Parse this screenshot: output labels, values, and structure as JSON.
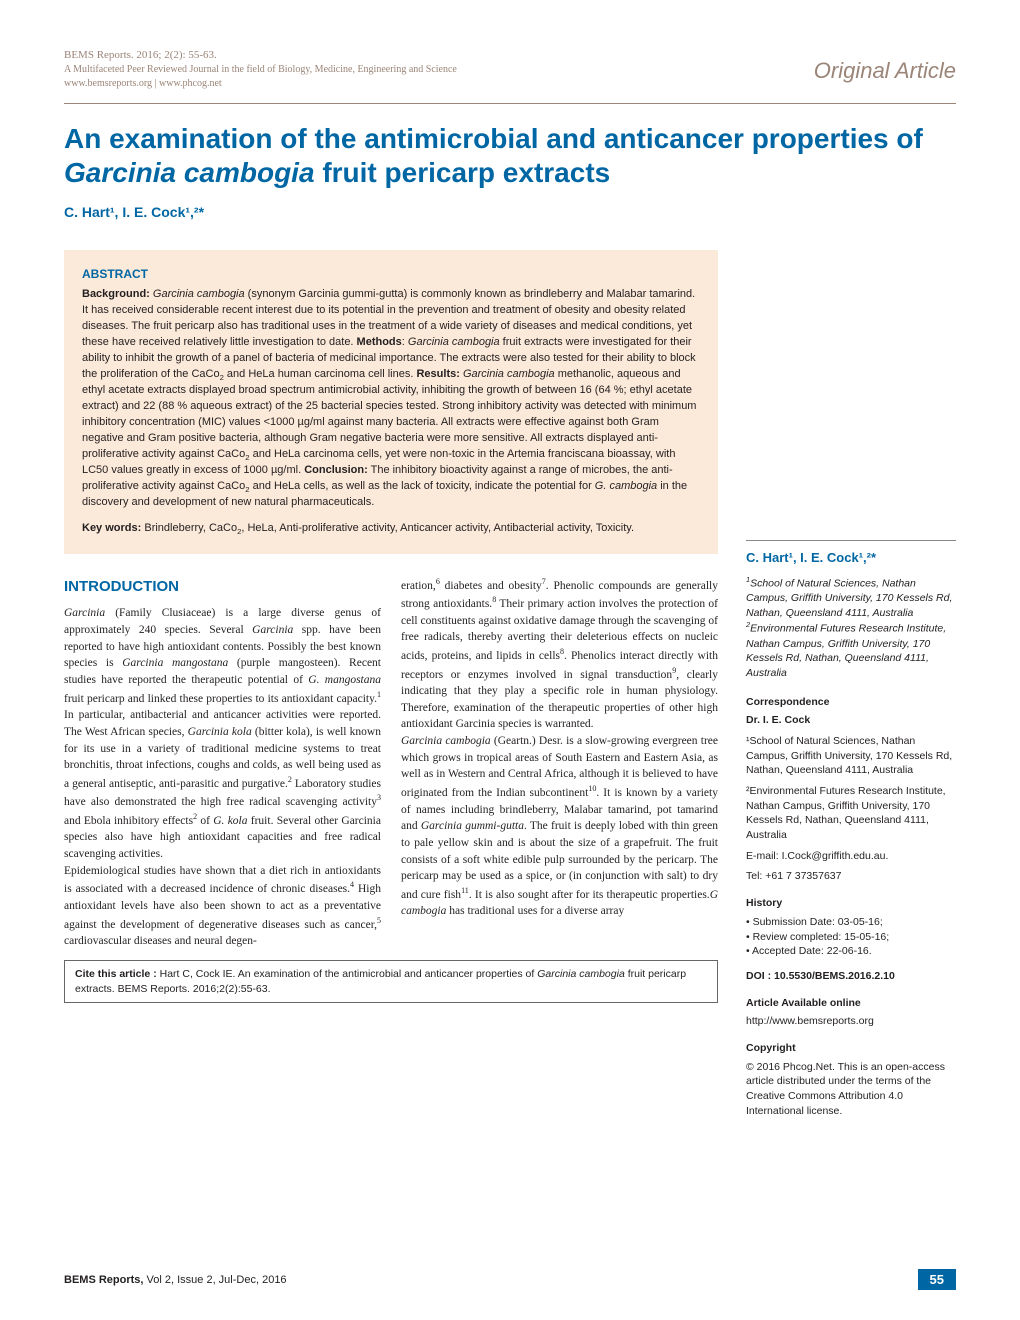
{
  "header": {
    "citation": "BEMS Reports. 2016; 2(2): 55-63.",
    "subtitle": "A Multifaceted Peer Reviewed Journal in the field of Biology, Medicine, Engineering and Science",
    "urls": "www.bemsreports.org | www.phcog.net",
    "article_type": "Original Article"
  },
  "title": {
    "pre": "An examination of the antimicrobial and anticancer properties of ",
    "italic": "Garcinia cambogia",
    "post": " fruit pericarp extracts"
  },
  "authors_line": "C. Hart¹, I. E. Cock¹,²*",
  "abstract": {
    "heading": "ABSTRACT",
    "body_html": "<strong>Background:</strong> <span class=\"italic\">Garcinia cambogia</span> (synonym Garcinia gummi-gutta) is commonly known as brindleberry and Malabar tamarind. It has received considerable recent interest due to its potential in the prevention and treatment of obesity and obesity related diseases. The fruit pericarp also has traditional uses in the treatment of a wide variety of diseases and medical conditions, yet these have received relatively little investigation to date. <strong>Methods</strong>: <span class=\"italic\">Garcinia cambogia</span> fruit extracts were investigated for their ability to inhibit the growth of a panel of bacteria of medicinal importance. The extracts were also tested for their ability to block the proliferation of the CaCo<sub>2</sub> and HeLa human carcinoma cell lines. <strong>Results:</strong> <span class=\"italic\">Garcinia cambogia</span> methanolic, aqueous and ethyl acetate extracts displayed broad spectrum antimicrobial activity, inhibiting the growth of between 16 (64 %; ethyl acetate extract) and 22 (88 % aqueous extract) of the 25 bacterial species tested. Strong inhibitory activity was detected with minimum inhibitory concentration (MIC) values &lt;1000 µg/ml against many bacteria. All extracts were effective against both Gram negative and Gram positive bacteria, although Gram negative bacteria were more sensitive. All extracts displayed anti-proliferative activity against CaCo<sub>2</sub> and HeLa carcinoma cells, yet were non-toxic in the Artemia franciscana bioassay, with LC50 values greatly in excess of 1000 µg/ml. <strong>Conclusion:</strong> The inhibitory bioactivity against a range of microbes, the anti-proliferative activity against CaCo<sub>2</sub> and HeLa cells, as well as the lack of toxicity, indicate the potential for <span class=\"italic\">G. cambogia</span> in the discovery and development of new natural pharmaceuticals.",
    "keywords_html": "<strong>Key words:</strong> Brindleberry, CaCo<sub>2</sub>, HeLa, Anti-proliferative activity, Anticancer activity, Antibacterial activity, Toxicity."
  },
  "intro": {
    "heading": "INTRODUCTION",
    "col1_html": "<span class=\"italic\">Garcinia</span> (Family Clusiaceae) is a large diverse genus of approximately 240 species. Several <span class=\"italic\">Garcinia</span> spp. have been reported to have high antioxidant contents. Possibly the best known species is <span class=\"italic\">Garcinia mangostana</span> (purple mangosteen). Recent studies have reported the therapeutic potential of <span class=\"italic\">G. mangostana</span> fruit pericarp and linked these properties to its antioxidant capacity.<sup>1</sup> In particular, antibacterial and anticancer activities were reported. The West African species, <span class=\"italic\">Garcinia kola</span> (bitter kola), is well known for its use in a variety of traditional medicine systems to treat bronchitis, throat infections, coughs and colds, as well being used as a general antiseptic, anti-parasitic and purgative.<sup>2</sup> Laboratory studies have also demonstrated the high free radical scavenging activity<sup>3</sup> and Ebola inhibitory effects<sup>2</sup> of <span class=\"italic\">G. kola</span> fruit. Several other Garcinia species also have high antioxidant capacities and free radical scavenging activities.<br>Epidemiological studies have shown that a diet rich in antioxidants is associated with a decreased incidence of chronic diseases.<sup>4</sup> High antioxidant levels have also been shown to act as a preventative against the development of degenerative diseases such as cancer,<sup>5</sup> cardiovascular diseases and neural degen-",
    "col2_html": "eration,<sup>6</sup> diabetes and obesity<sup>7</sup>. Phenolic compounds are generally strong antioxidants.<sup>8</sup> Their primary action involves the protection of cell constituents against oxidative damage through the scavenging of free radicals, thereby averting their deleterious effects on nucleic acids, proteins, and lipids in cells<sup>8</sup>. Phenolics interact directly with receptors or enzymes involved in signal transduction<sup>9</sup>, clearly indicating that they play a specific role in human physiology. Therefore, examination of the therapeutic properties of other high antioxidant Garcinia species is warranted.<br><span class=\"italic\">Garcinia cambogia</span> (Geartn.) Desr. is a slow-growing evergreen tree which grows in tropical areas of South Eastern and Eastern Asia, as well as in Western and Central Africa, although it is believed to have originated from the Indian subcontinent<sup>10</sup>. It is known by a variety of names including brindleberry, Malabar tamarind, pot tamarind and <span class=\"italic\">Garcinia gummi-gutta</span>. The fruit is deeply lobed with thin green to pale yellow skin and is about the size of a grapefruit. The fruit consists of a soft white edible pulp surrounded by the pericarp. The pericarp may be used as a spice, or (in conjunction with salt) to dry and cure fish<sup>11</sup>. It is also sought after for its therapeutic properties.<span class=\"italic\">G cambogia</span> has traditional uses for a diverse array"
  },
  "cite_box_html": "<strong>Cite this article :</strong> Hart C, Cock IE. An examination of the antimicrobial and anticancer properties of <span class=\"italic\">Garcinia cambogia</span> fruit pericarp extracts. BEMS Reports. 2016;2(2):55-63.",
  "sidebar": {
    "authors": "C. Hart¹, I. E. Cock¹,²*",
    "affiliations_html": "<sup>1</sup>School of Natural Sciences, Nathan Campus, Griffith University, 170 Kessels Rd, Nathan, Queensland 4111, Australia<br><sup>2</sup>Environmental Futures Research Institute, Nathan Campus, Griffith University, 170 Kessels Rd, Nathan, Queensland 4111, Australia",
    "correspondence_h": "Correspondence",
    "corr_name": "Dr. I. E. Cock",
    "corr_addr1": "¹School of Natural Sciences, Nathan Campus, Griffith University, 170 Kessels Rd, Nathan, Queensland 4111, Australia",
    "corr_addr2": "²Environmental Futures Research Institute, Nathan Campus, Griffith University, 170 Kessels Rd, Nathan, Queensland 4111, Australia",
    "corr_email": "E-mail: I.Cock@griffith.edu.au.",
    "corr_tel": "Tel: +61 7 37357637",
    "history_h": "History",
    "history_items": [
      "Submission Date: 03-05-16;",
      "Review completed: 15-05-16;",
      "Accepted Date: 22-06-16."
    ],
    "doi_label": "DOI : ",
    "doi": "10.5530/BEMS.2016.2.10",
    "avail_h": "Article Available online",
    "avail_url": "http://www.bemsreports.org",
    "copyright_h": "Copyright",
    "copyright_text": "© 2016 Phcog.Net. This is an open-access article distributed under the terms of the Creative Commons Attribution 4.0 International license."
  },
  "footer": {
    "journal": "BEMS Reports,",
    "issue": " Vol 2, Issue 2, Jul-Dec, 2016",
    "page": "55"
  },
  "colors": {
    "accent_blue": "#0066a4",
    "tan": "#9b8578",
    "abstract_bg": "#fbe9d9"
  }
}
